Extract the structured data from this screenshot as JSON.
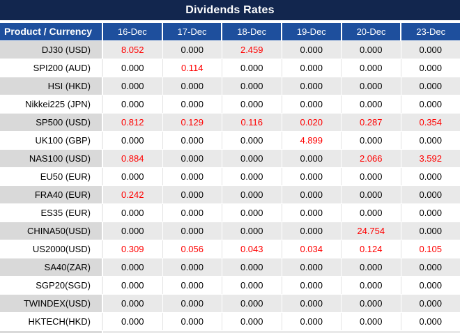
{
  "title": "Dividends Rates",
  "colors": {
    "title_bar_bg": "#12264e",
    "header_bg": "#1e4f9d",
    "header_text": "#ffffff",
    "alt_row_product_bg": "#d9d9d9",
    "alt_row_value_bg": "#e9e9e9",
    "plain_row_bg": "#ffffff",
    "value_text": "#000000",
    "nonzero_value_text": "#ff0000"
  },
  "chart_data": {
    "type": "table",
    "title": "Dividends Rates",
    "columns": [
      "Product / Currency",
      "16-Dec",
      "17-Dec",
      "18-Dec",
      "19-Dec",
      "20-Dec",
      "23-Dec"
    ],
    "rows": [
      {
        "product": "DJ30 (USD)",
        "values": [
          "8.052",
          "0.000",
          "2.459",
          "0.000",
          "0.000",
          "0.000"
        ],
        "red": [
          true,
          false,
          true,
          false,
          false,
          false
        ]
      },
      {
        "product": "SPI200 (AUD)",
        "values": [
          "0.000",
          "0.114",
          "0.000",
          "0.000",
          "0.000",
          "0.000"
        ],
        "red": [
          false,
          true,
          false,
          false,
          false,
          false
        ]
      },
      {
        "product": "HSI (HKD)",
        "values": [
          "0.000",
          "0.000",
          "0.000",
          "0.000",
          "0.000",
          "0.000"
        ],
        "red": [
          false,
          false,
          false,
          false,
          false,
          false
        ]
      },
      {
        "product": "Nikkei225 (JPN)",
        "values": [
          "0.000",
          "0.000",
          "0.000",
          "0.000",
          "0.000",
          "0.000"
        ],
        "red": [
          false,
          false,
          false,
          false,
          false,
          false
        ]
      },
      {
        "product": "SP500 (USD)",
        "values": [
          "0.812",
          "0.129",
          "0.116",
          "0.020",
          "0.287",
          "0.354"
        ],
        "red": [
          true,
          true,
          true,
          true,
          true,
          true
        ]
      },
      {
        "product": "UK100 (GBP)",
        "values": [
          "0.000",
          "0.000",
          "0.000",
          "4.899",
          "0.000",
          "0.000"
        ],
        "red": [
          false,
          false,
          false,
          true,
          false,
          false
        ]
      },
      {
        "product": "NAS100 (USD)",
        "values": [
          "0.884",
          "0.000",
          "0.000",
          "0.000",
          "2.066",
          "3.592"
        ],
        "red": [
          true,
          false,
          false,
          false,
          true,
          true
        ]
      },
      {
        "product": "EU50 (EUR)",
        "values": [
          "0.000",
          "0.000",
          "0.000",
          "0.000",
          "0.000",
          "0.000"
        ],
        "red": [
          false,
          false,
          false,
          false,
          false,
          false
        ]
      },
      {
        "product": "FRA40 (EUR)",
        "values": [
          "0.242",
          "0.000",
          "0.000",
          "0.000",
          "0.000",
          "0.000"
        ],
        "red": [
          true,
          false,
          false,
          false,
          false,
          false
        ]
      },
      {
        "product": "ES35 (EUR)",
        "values": [
          "0.000",
          "0.000",
          "0.000",
          "0.000",
          "0.000",
          "0.000"
        ],
        "red": [
          false,
          false,
          false,
          false,
          false,
          false
        ]
      },
      {
        "product": "CHINA50(USD)",
        "values": [
          "0.000",
          "0.000",
          "0.000",
          "0.000",
          "24.754",
          "0.000"
        ],
        "red": [
          false,
          false,
          false,
          false,
          true,
          false
        ]
      },
      {
        "product": "US2000(USD)",
        "values": [
          "0.309",
          "0.056",
          "0.043",
          "0.034",
          "0.124",
          "0.105"
        ],
        "red": [
          true,
          true,
          true,
          true,
          true,
          true
        ]
      },
      {
        "product": "SA40(ZAR)",
        "values": [
          "0.000",
          "0.000",
          "0.000",
          "0.000",
          "0.000",
          "0.000"
        ],
        "red": [
          false,
          false,
          false,
          false,
          false,
          false
        ]
      },
      {
        "product": "SGP20(SGD)",
        "values": [
          "0.000",
          "0.000",
          "0.000",
          "0.000",
          "0.000",
          "0.000"
        ],
        "red": [
          false,
          false,
          false,
          false,
          false,
          false
        ]
      },
      {
        "product": "TWINDEX(USD)",
        "values": [
          "0.000",
          "0.000",
          "0.000",
          "0.000",
          "0.000",
          "0.000"
        ],
        "red": [
          false,
          false,
          false,
          false,
          false,
          false
        ]
      },
      {
        "product": "HKTECH(HKD)",
        "values": [
          "0.000",
          "0.000",
          "0.000",
          "0.000",
          "0.000",
          "0.000"
        ],
        "red": [
          false,
          false,
          false,
          false,
          false,
          false
        ]
      }
    ]
  }
}
